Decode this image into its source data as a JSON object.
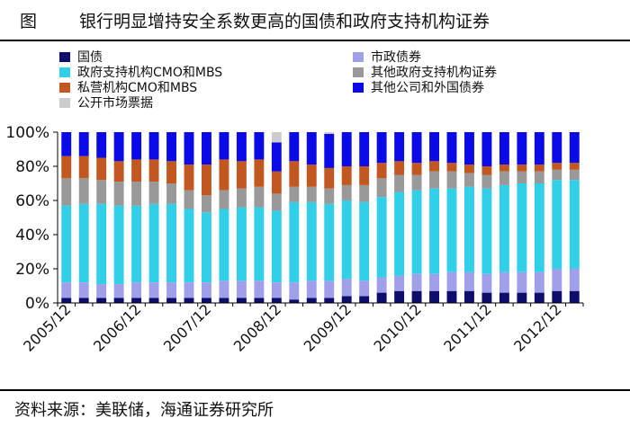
{
  "figure": {
    "label": "图",
    "title": "银行明显增持安全系数更高的国债和政府支持机构证券",
    "source": "资料来源：美联储，海通证券研究所"
  },
  "chart_data": {
    "type": "bar",
    "stacked": true,
    "ylim": [
      0,
      100
    ],
    "yticks": [
      "0%",
      "20%",
      "40%",
      "60%",
      "80%",
      "100%"
    ],
    "xtick_labels": [
      "2005/12",
      "2006/12",
      "2007/12",
      "2008/12",
      "2009/12",
      "2010/12",
      "2011/12",
      "2012/12"
    ],
    "xtick_positions": [
      0,
      4,
      8,
      12,
      16,
      20,
      24,
      28
    ],
    "legend": [
      {
        "name": "国债",
        "color": "#0d0d6b"
      },
      {
        "name": "市政债券",
        "color": "#9f9fea"
      },
      {
        "name": "政府支持机构CMO和MBS",
        "color": "#32cfe8"
      },
      {
        "name": "其他政府支持机构证券",
        "color": "#999999"
      },
      {
        "name": "私营机构CMO和MBS",
        "color": "#c2571f"
      },
      {
        "name": "其他公司和外国债券",
        "color": "#0a0ae8"
      },
      {
        "name": "公开市场票据",
        "color": "#cccccc"
      }
    ],
    "series": [
      {
        "name": "国债",
        "color": "#0d0d6b",
        "values": [
          3,
          3,
          3,
          3,
          3,
          3,
          3,
          3,
          3,
          3,
          3,
          3,
          3,
          2,
          3,
          3,
          4,
          4,
          6,
          7,
          7,
          7,
          7,
          7,
          6,
          6,
          6,
          6,
          7,
          7
        ]
      },
      {
        "name": "市政债券",
        "color": "#9f9fea",
        "values": [
          9,
          9,
          8,
          8,
          9,
          9,
          9,
          9,
          9,
          10,
          10,
          10,
          9,
          10,
          10,
          10,
          10,
          9,
          9,
          9,
          10,
          10,
          11,
          11,
          11,
          12,
          12,
          12,
          13,
          13
        ]
      },
      {
        "name": "政府支持机构CMO和MBS",
        "color": "#32cfe8",
        "values": [
          45,
          46,
          47,
          46,
          45,
          46,
          46,
          43,
          41,
          42,
          43,
          43,
          42,
          47,
          46,
          45,
          46,
          46,
          47,
          49,
          49,
          50,
          49,
          50,
          50,
          51,
          52,
          52,
          52,
          52
        ]
      },
      {
        "name": "其他政府支持机构证券",
        "color": "#999999",
        "values": [
          16,
          15,
          14,
          14,
          14,
          13,
          12,
          11,
          10,
          11,
          11,
          12,
          10,
          9,
          9,
          9,
          9,
          10,
          11,
          10,
          9,
          10,
          10,
          8,
          8,
          8,
          7,
          7,
          6,
          6
        ]
      },
      {
        "name": "私营机构CMO和MBS",
        "color": "#c2571f",
        "values": [
          13,
          13,
          13,
          12,
          13,
          13,
          13,
          15,
          18,
          18,
          16,
          16,
          13,
          15,
          13,
          12,
          11,
          11,
          9,
          8,
          7,
          6,
          5,
          5,
          5,
          4,
          4,
          4,
          4,
          4
        ]
      },
      {
        "name": "其他公司和外国债券",
        "color": "#0a0ae8",
        "values": [
          14,
          14,
          15,
          17,
          16,
          16,
          17,
          19,
          19,
          16,
          17,
          16,
          17,
          17,
          19,
          20,
          20,
          20,
          18,
          17,
          18,
          17,
          18,
          19,
          20,
          19,
          19,
          19,
          18,
          18
        ]
      },
      {
        "name": "公开市场票据",
        "color": "#cccccc",
        "values": [
          0,
          0,
          0,
          0,
          0,
          0,
          0,
          0,
          0,
          0,
          0,
          0,
          6,
          0,
          0,
          1,
          0,
          0,
          0,
          0,
          0,
          0,
          0,
          0,
          0,
          0,
          0,
          0,
          0,
          0
        ]
      }
    ]
  }
}
